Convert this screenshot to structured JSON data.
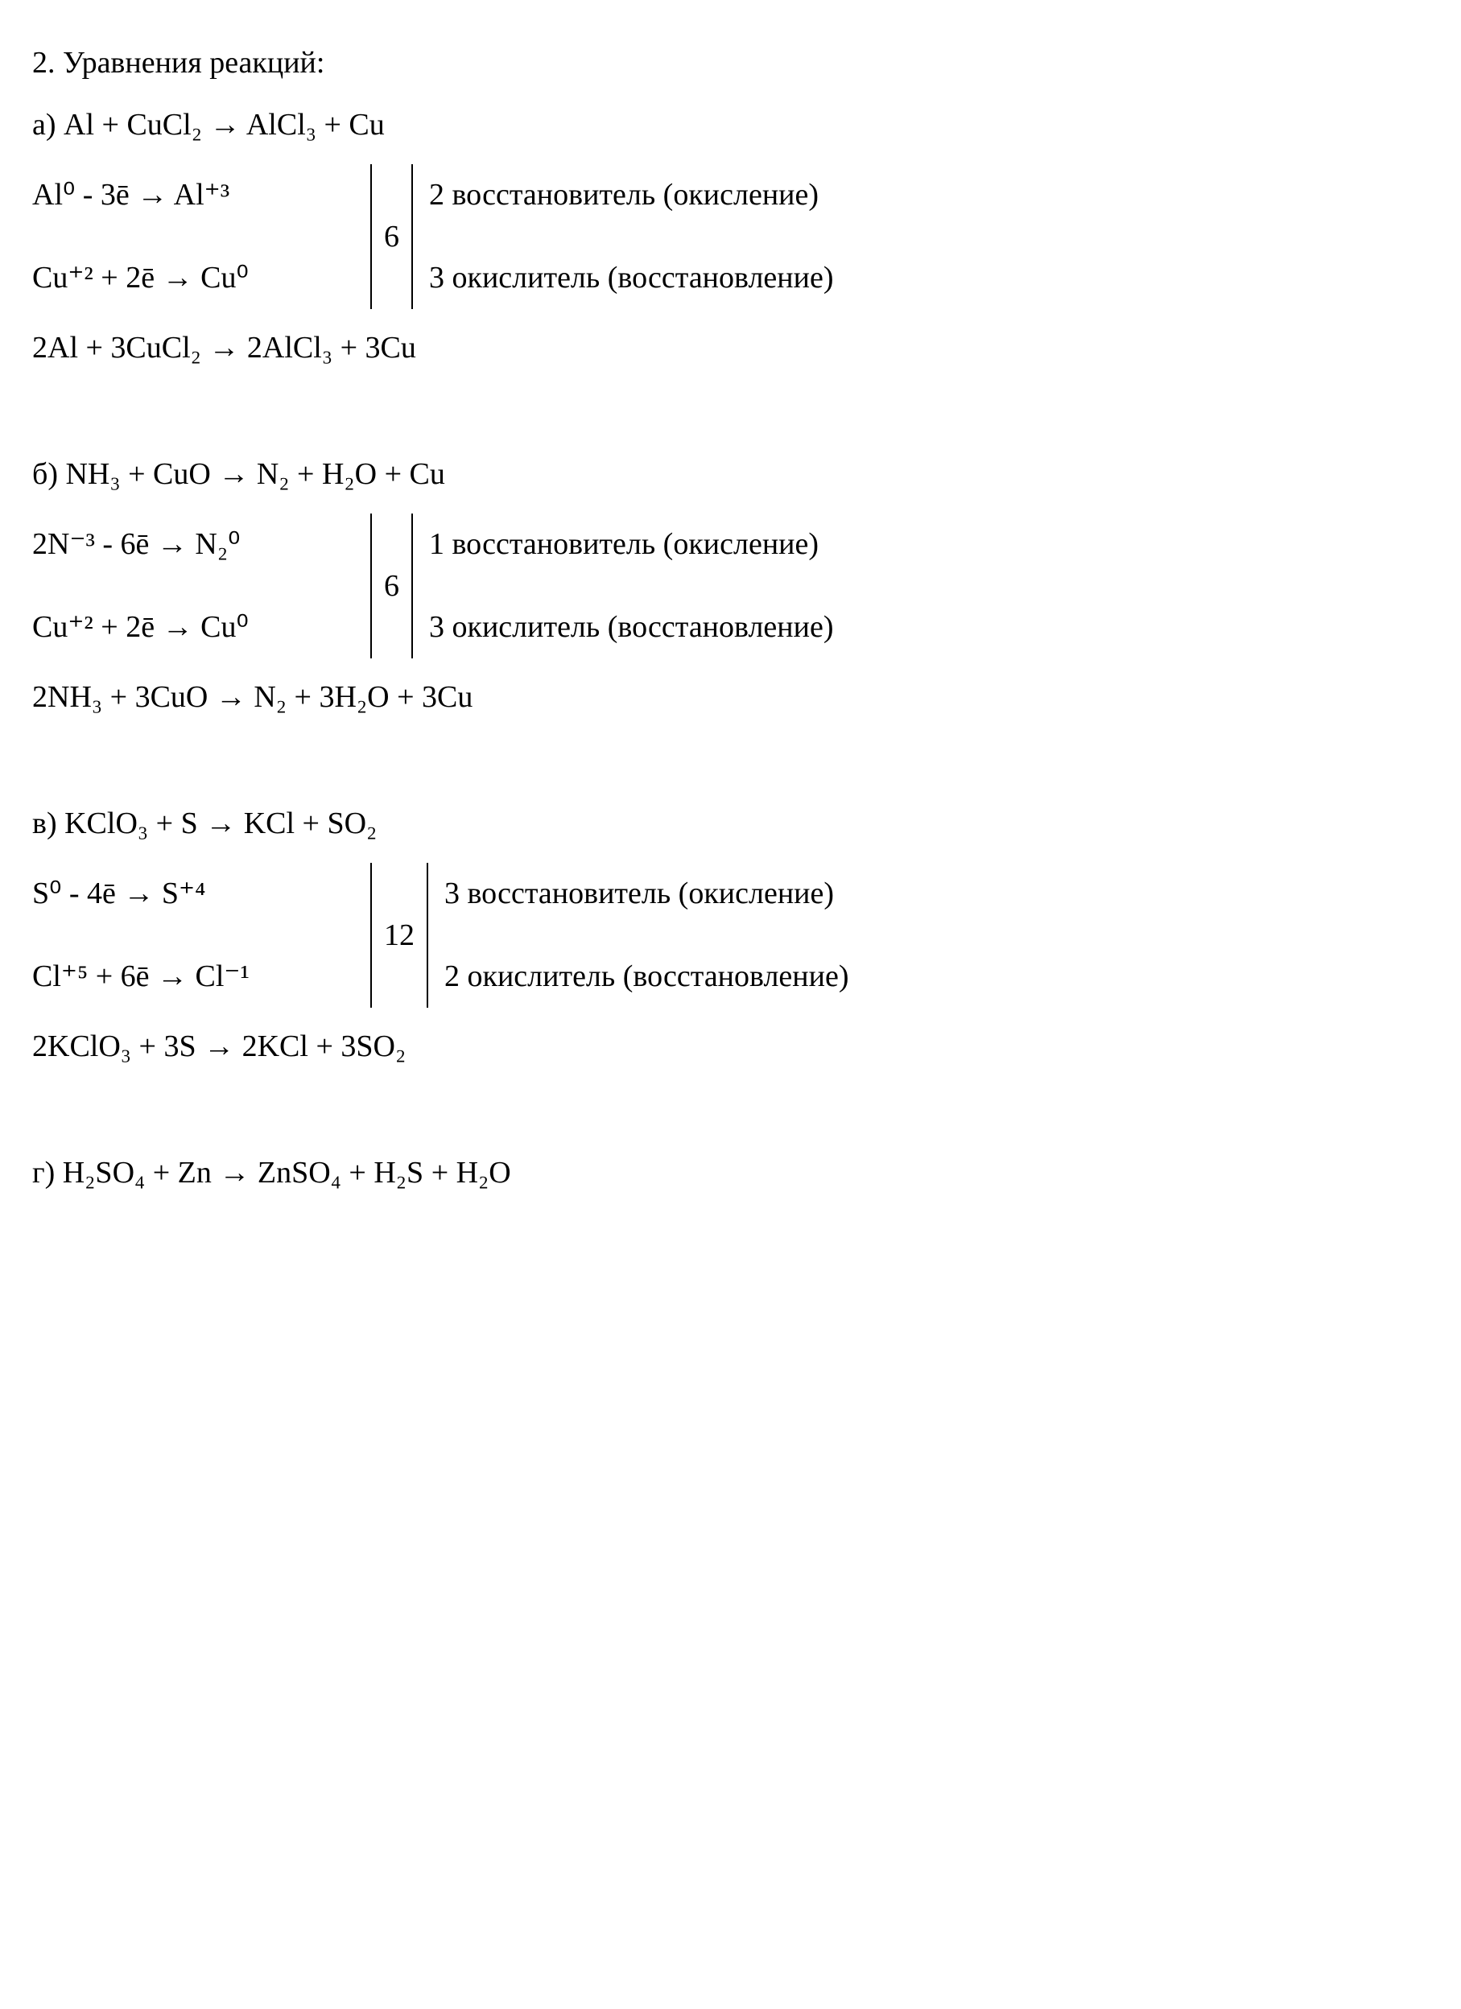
{
  "title": "2. Уравнения реакций:",
  "groups": [
    {
      "label": "а) Al + CuCl₂ → AlCl₃ + Cu",
      "half1_left": "Al⁰ - 3ē → Al⁺³",
      "half1_right": "2 восстановитель (окисление)",
      "lcm": "6",
      "half2_left": "Cu⁺² + 2ē → Cu⁰",
      "half2_right": "3 окислитель (восстановление)",
      "balanced": "2Al + 3CuCl₂ → 2AlCl₃ + 3Cu"
    },
    {
      "label": "б) NH₃ + CuO → N₂ + H₂O + Cu",
      "half1_left": "2N⁻³ - 6ē → N₂⁰",
      "half1_right": "1 восстановитель (окисление)",
      "lcm": "6",
      "half2_left": "Cu⁺² + 2ē → Cu⁰",
      "half2_right": "3 окислитель (восстановление)",
      "balanced": "2NH₃ + 3CuO → N₂ + 3H₂O + 3Cu"
    },
    {
      "label": "в) KClO₃ + S → KCl + SO₂",
      "half1_left": "S⁰ - 4ē → S⁺⁴",
      "half1_right": "3 восстановитель (окисление)",
      "lcm": "12",
      "half2_left": "Cl⁺⁵ + 6ē → Cl⁻¹",
      "half2_right": "2 окислитель (восстановление)",
      "balanced": "2KClO₃ + 3S → 2KCl + 3SO₂"
    },
    {
      "label": "г) H₂SO₄ + Zn → ZnSO₄ + H₂S + H₂O",
      "half1_left": "",
      "half1_right": "",
      "lcm": "",
      "half2_left": "",
      "half2_right": "",
      "balanced": ""
    }
  ],
  "style": {
    "background_color": "#ffffff",
    "text_color": "#000000",
    "font_family": "Times New Roman",
    "font_size_pt": 28,
    "line_color": "#000000"
  }
}
